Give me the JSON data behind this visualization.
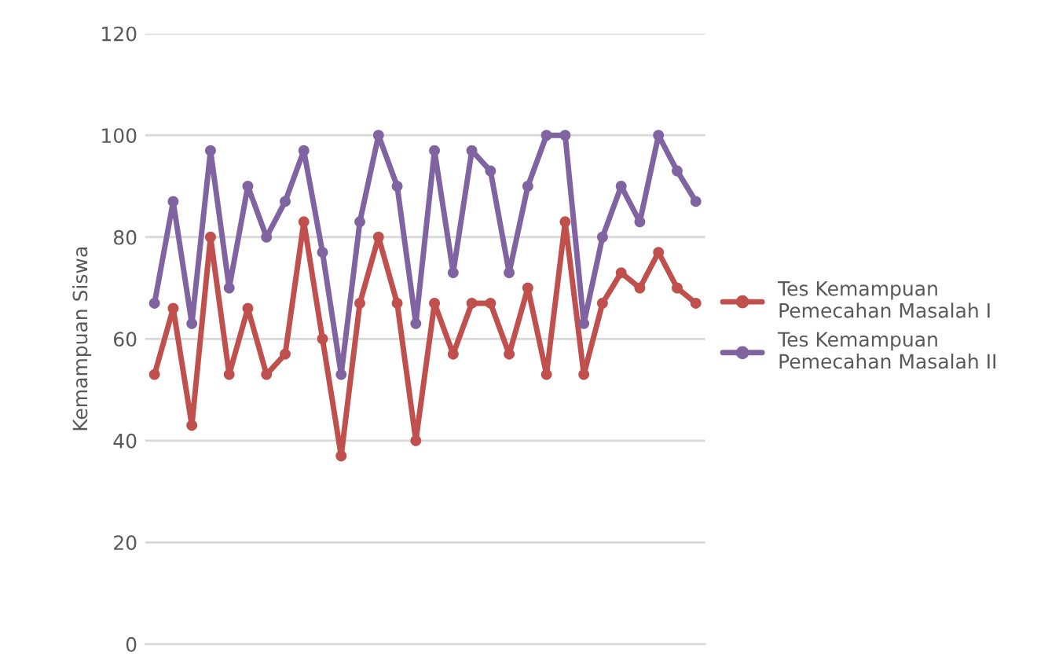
{
  "chart_data": {
    "type": "line",
    "ylabel": "Kemampuan Siswa",
    "categories": [
      null,
      null,
      null,
      null,
      null,
      null,
      null,
      null,
      null,
      null,
      null,
      null,
      null,
      null,
      null,
      null,
      null,
      null,
      null,
      null,
      null,
      null,
      null,
      null,
      null,
      null,
      null,
      null,
      null,
      null
    ],
    "series": [
      {
        "name": "Tes Kemampuan Pemecahan Masalah I",
        "color": "#c0504d",
        "values": [
          53,
          66,
          43,
          80,
          53,
          66,
          53,
          57,
          83,
          60,
          37,
          67,
          80,
          67,
          40,
          67,
          57,
          67,
          67,
          57,
          70,
          53,
          83,
          53,
          67,
          73,
          70,
          77,
          70,
          67
        ]
      },
      {
        "name": "Tes Kemampuan Pemecahan Masalah II",
        "color": "#8064a2",
        "values": [
          67,
          87,
          63,
          97,
          70,
          90,
          80,
          87,
          97,
          77,
          53,
          83,
          100,
          90,
          63,
          97,
          73,
          97,
          93,
          73,
          90,
          100,
          100,
          63,
          80,
          90,
          83,
          100,
          93,
          87
        ]
      }
    ],
    "ylim": [
      0,
      120
    ],
    "yticks": [
      0,
      20,
      40,
      60,
      80,
      100,
      120
    ],
    "grid": "y",
    "legend": "right",
    "marker": "circle",
    "line_style": "solid"
  }
}
